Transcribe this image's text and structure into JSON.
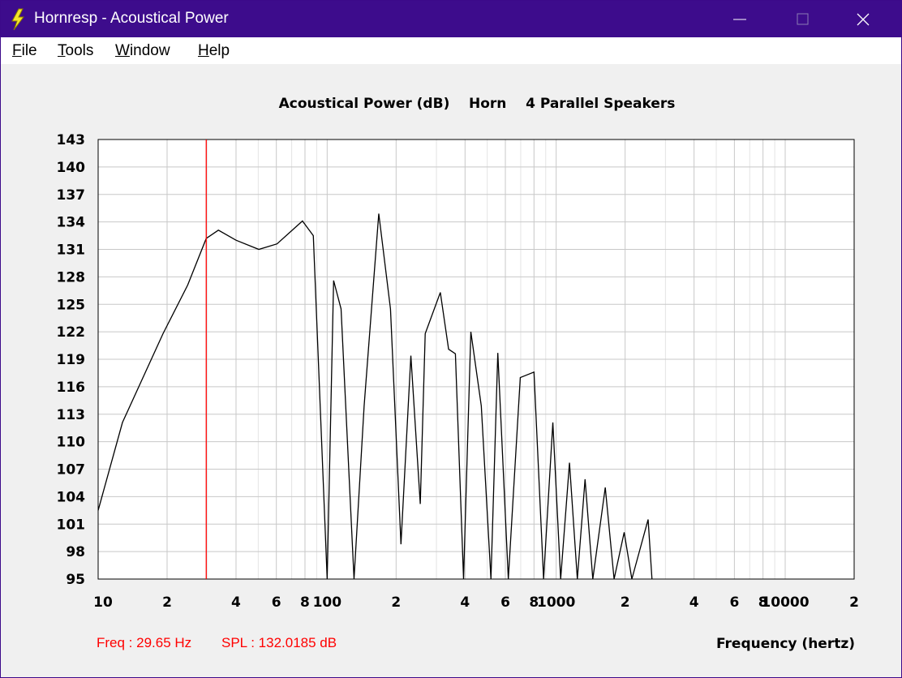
{
  "window": {
    "title": "Hornresp - Acoustical Power",
    "menu": [
      "File",
      "Tools",
      "Window",
      "Help"
    ]
  },
  "chart_data": {
    "type": "line",
    "title": "Acoustical Power (dB)    Horn    4 Parallel Speakers",
    "x_label": "Frequency (hertz)",
    "log_x": true,
    "grid": true,
    "xlim": [
      10,
      20000
    ],
    "ylim": [
      95,
      143
    ],
    "xticks": [
      10,
      {
        "value": 20,
        "label": "2"
      },
      {
        "value": 40,
        "label": "4"
      },
      {
        "value": 60,
        "label": "6"
      },
      {
        "value": 80,
        "label": "8"
      },
      100,
      {
        "value": 200,
        "label": "2"
      },
      {
        "value": 400,
        "label": "4"
      },
      {
        "value": 600,
        "label": "6"
      },
      {
        "value": 800,
        "label": "8"
      },
      1000,
      {
        "value": 2000,
        "label": "2"
      },
      {
        "value": 4000,
        "label": "4"
      },
      {
        "value": 6000,
        "label": "6"
      },
      {
        "value": 8000,
        "label": "8"
      },
      10000,
      {
        "value": 20000,
        "label": "2"
      }
    ],
    "xminor": [
      30,
      50,
      70,
      90,
      300,
      500,
      700,
      900,
      3000,
      5000,
      7000,
      9000
    ],
    "yticks": [
      95,
      98,
      101,
      104,
      107,
      110,
      113,
      116,
      119,
      122,
      125,
      128,
      131,
      134,
      137,
      140,
      143
    ],
    "cursor_x": 29.65,
    "cursor_color": "#ff0000",
    "freq_readout": "Freq : 29.65 Hz",
    "spl_readout": "SPL : 132.0185 dB",
    "x": [
      10,
      12.77,
      19.2,
      24.6,
      29.65,
      33.5,
      40,
      50.3,
      60.4,
      78,
      87,
      100,
      106.7,
      115,
      131,
      145,
      168,
      189,
      210,
      232,
      255,
      268,
      312,
      339,
      363,
      394,
      424,
      471,
      519,
      556,
      618,
      697,
      800,
      881,
      967,
      1046,
      1143,
      1237,
      1337,
      1445,
      1638,
      1790,
      1981,
      2140,
      2520,
      2620
    ],
    "series": [
      {
        "name": "Acoustical Power",
        "color": "#000000",
        "values": [
          102.5,
          112.1,
          121.8,
          127.1,
          132.2,
          133.1,
          132.0,
          131.0,
          131.6,
          134.1,
          132.5,
          95,
          127.6,
          124.5,
          95,
          113.9,
          134.9,
          124.5,
          98.8,
          119.4,
          103.2,
          121.8,
          126.3,
          120.1,
          119.6,
          95,
          122,
          113.9,
          95,
          119.7,
          95,
          117,
          117.6,
          95,
          112.1,
          95,
          107.7,
          95,
          105.9,
          95,
          105,
          95,
          100.1,
          95,
          101.5,
          95
        ]
      }
    ]
  }
}
